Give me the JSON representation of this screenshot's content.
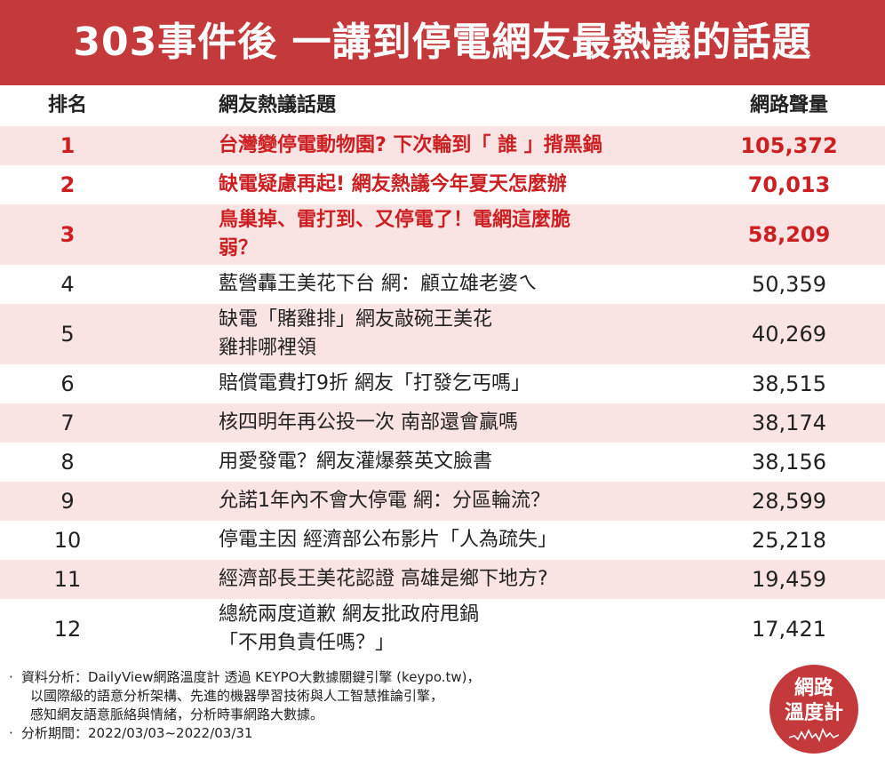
{
  "title": "303事件後 一講到停電網友最熱議的話題",
  "table": {
    "headers": {
      "rank": "排名",
      "topic": "網友熱議話題",
      "volume": "網路聲量"
    },
    "rows": [
      {
        "rank": "1",
        "topic": [
          "台灣變停電動物園? 下次輪到「 誰 」揹黑鍋"
        ],
        "volume": "105,372"
      },
      {
        "rank": "2",
        "topic": [
          "缺電疑慮再起! 網友熱議今年夏天怎麼辦"
        ],
        "volume": "70,013"
      },
      {
        "rank": "3",
        "topic": [
          "鳥巢掉、雷打到、又停電了！電網這麼脆",
          "弱？"
        ],
        "volume": "58,209"
      },
      {
        "rank": "4",
        "topic": [
          "藍營轟王美花下台 網：顧立雄老婆ㄟ"
        ],
        "volume": "50,359"
      },
      {
        "rank": "5",
        "topic": [
          "缺電「賭雞排」網友敲碗王美花",
          "雞排哪裡領"
        ],
        "volume": "40,269"
      },
      {
        "rank": "6",
        "topic": [
          "賠償電費打9折 網友「打發乞丐嗎」"
        ],
        "volume": "38,515"
      },
      {
        "rank": "7",
        "topic": [
          "核四明年再公投一次 南部還會贏嗎"
        ],
        "volume": "38,174"
      },
      {
        "rank": "8",
        "topic": [
          "用愛發電？網友灌爆蔡英文臉書"
        ],
        "volume": "38,156"
      },
      {
        "rank": "9",
        "topic": [
          "允諾1年內不會大停電 網：分區輪流？"
        ],
        "volume": "28,599"
      },
      {
        "rank": "10",
        "topic": [
          "停電主因 經濟部公布影片「人為疏失」"
        ],
        "volume": "25,218"
      },
      {
        "rank": "11",
        "topic": [
          "經濟部長王美花認證 高雄是鄉下地方?"
        ],
        "volume": "19,459"
      },
      {
        "rank": "12",
        "topic": [
          "總統兩度道歉 網友批政府甩鍋",
          "「不用負責任嗎？」"
        ],
        "volume": "17,421"
      }
    ]
  },
  "footer": {
    "bullet": "·",
    "analysis_lines": [
      "資料分析：DailyView網路溫度計 透過 KEYPO大數據關鍵引擎 (keypo.tw)，",
      "以國際級的語意分析架構、先進的機器學習技術與人工智慧推論引擎，",
      "感知網友語意脈絡與情緒，分析時事網路大數據。"
    ],
    "period": "分析期間：2022/03/03~2022/03/31"
  },
  "logo": {
    "line1": "網路",
    "line2": "溫度計"
  },
  "colors": {
    "accent": "#c4393b",
    "highlight_text": "#cc1f22",
    "row_stripe": "#fae3e3"
  },
  "chart_data": {
    "type": "table",
    "title": "303事件後 一講到停電網友最熱議的話題",
    "columns": [
      "排名",
      "網友熱議話題",
      "網路聲量"
    ],
    "categories": [
      "台灣變停電動物園? 下次輪到「 誰 」揹黑鍋",
      "缺電疑慮再起! 網友熱議今年夏天怎麼辦",
      "鳥巢掉、雷打到、又停電了！電網這麼脆弱？",
      "藍營轟王美花下台 網：顧立雄老婆ㄟ",
      "缺電「賭雞排」網友敲碗王美花雞排哪裡領",
      "賠償電費打9折 網友「打發乞丐嗎」",
      "核四明年再公投一次 南部還會贏嗎",
      "用愛發電？網友灌爆蔡英文臉書",
      "允諾1年內不會大停電 網：分區輪流？",
      "停電主因 經濟部公布影片「人為疏失」",
      "經濟部長王美花認證 高雄是鄉下地方?",
      "總統兩度道歉 網友批政府甩鍋「不用負責任嗎？」"
    ],
    "values": [
      105372,
      70013,
      58209,
      50359,
      40269,
      38515,
      38174,
      38156,
      28599,
      25218,
      19459,
      17421
    ],
    "highlighted_ranks": [
      1,
      2,
      3
    ]
  }
}
